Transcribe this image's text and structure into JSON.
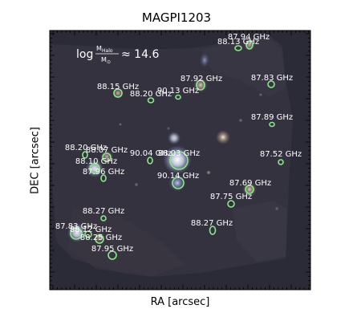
{
  "title": "MAGPI1203",
  "xlabel": "RA [arcsec]",
  "ylabel": "DEC [arcsec]",
  "annotation": {
    "prefix": "log",
    "num": "M",
    "num_sub": "Halo",
    "den": "M",
    "den_sub": "⊙",
    "value": "≈ 14.6"
  },
  "colors": {
    "sky": "#2a2a37",
    "ring": "#8ae88a",
    "label": "#ffffff"
  },
  "sources": [
    {
      "label": "87.94 GHz"
    },
    {
      "label": "88.13 GHz"
    },
    {
      "label": "87.92 GHz"
    },
    {
      "label": "87.83 GHz"
    },
    {
      "label": "88.15 GHz"
    },
    {
      "label": "90.13 GHz"
    },
    {
      "label": "88.20 GHz"
    },
    {
      "label": "87.89 GHz"
    },
    {
      "label": "88.20 GHz"
    },
    {
      "label": "88.07 GHz"
    },
    {
      "label": "90.04 GHz"
    },
    {
      "label": "88.03 GHz"
    },
    {
      "label": "87.52 GHz"
    },
    {
      "label": "88.10 GHz"
    },
    {
      "label": "87.96 GHz"
    },
    {
      "label": "90.14 GHz"
    },
    {
      "label": "87.69 GHz"
    },
    {
      "label": "87.75 GHz"
    },
    {
      "label": "88.27 GHz"
    },
    {
      "label": "88.27 GHz"
    },
    {
      "label": "87.83 GHz"
    },
    {
      "label": "88.12 GHz"
    },
    {
      "label": "88.25 GHz"
    },
    {
      "label": "87.95 GHz"
    }
  ]
}
